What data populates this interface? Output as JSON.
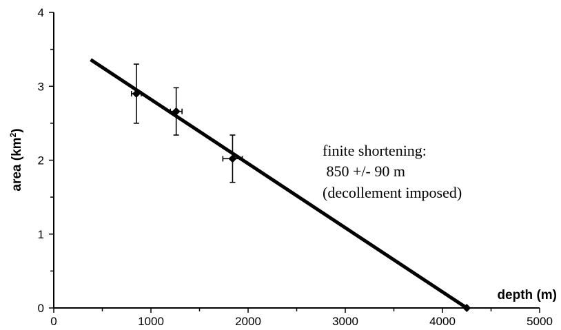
{
  "chart_data": {
    "type": "scatter",
    "xlabel": "depth (m)",
    "ylabel_main": "area (km",
    "ylabel_sup": "2",
    "ylabel_close": ")",
    "xlim": [
      0,
      5000
    ],
    "ylim": [
      0,
      4
    ],
    "x_ticks": [
      0,
      1000,
      2000,
      3000,
      4000,
      5000
    ],
    "y_ticks": [
      0,
      1,
      2,
      3,
      4
    ],
    "grid": false,
    "points": [
      {
        "x": 850,
        "y": 2.9,
        "x_err": 50,
        "y_err": 0.4
      },
      {
        "x": 1260,
        "y": 2.66,
        "x_err": 60,
        "y_err": 0.32
      },
      {
        "x": 1840,
        "y": 2.02,
        "x_err": 100,
        "y_err": 0.32
      },
      {
        "x": 4250,
        "y": 0.0
      }
    ],
    "fit_line": {
      "x": [
        380,
        4250
      ],
      "y": [
        3.36,
        0.0
      ]
    },
    "annotation": [
      "finite shortening:",
      " 850 +/- 90 m",
      "(decollement imposed)"
    ]
  }
}
